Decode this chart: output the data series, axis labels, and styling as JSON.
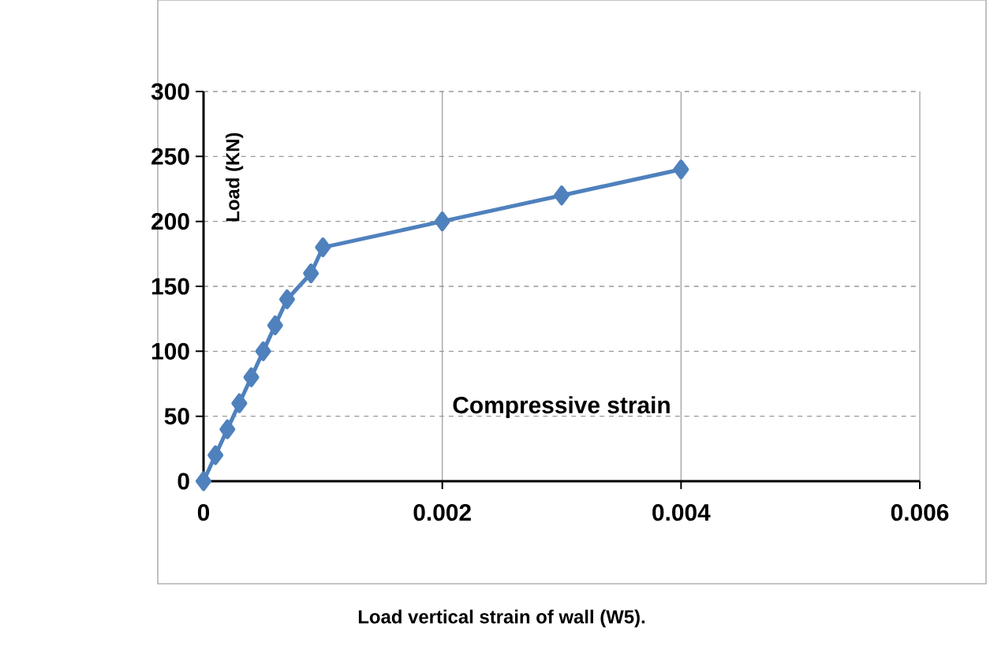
{
  "chart_data": {
    "type": "line",
    "xlabel": "Compressive strain",
    "ylabel": "Load (KN)",
    "annotations": [
      "Load vertical strain of wall (W5)."
    ],
    "x": [
      0,
      0.0001,
      0.0002,
      0.0003,
      0.0004,
      0.0005,
      0.0006,
      0.0007,
      0.0009,
      0.001,
      0.002,
      0.003,
      0.004
    ],
    "series": [
      {
        "color": "#4f81bd",
        "values": [
          0,
          20,
          40,
          60,
          80,
          100,
          120,
          140,
          160,
          180,
          200,
          220,
          240
        ]
      }
    ],
    "xlim": [
      0,
      0.006
    ],
    "ylim": [
      0,
      300
    ],
    "xticks": [
      0,
      0.002,
      0.004,
      0.006
    ],
    "yticks": [
      0,
      50,
      100,
      150,
      200,
      250,
      300
    ],
    "grid": true,
    "marker": "diamond",
    "line_style": "solid"
  }
}
